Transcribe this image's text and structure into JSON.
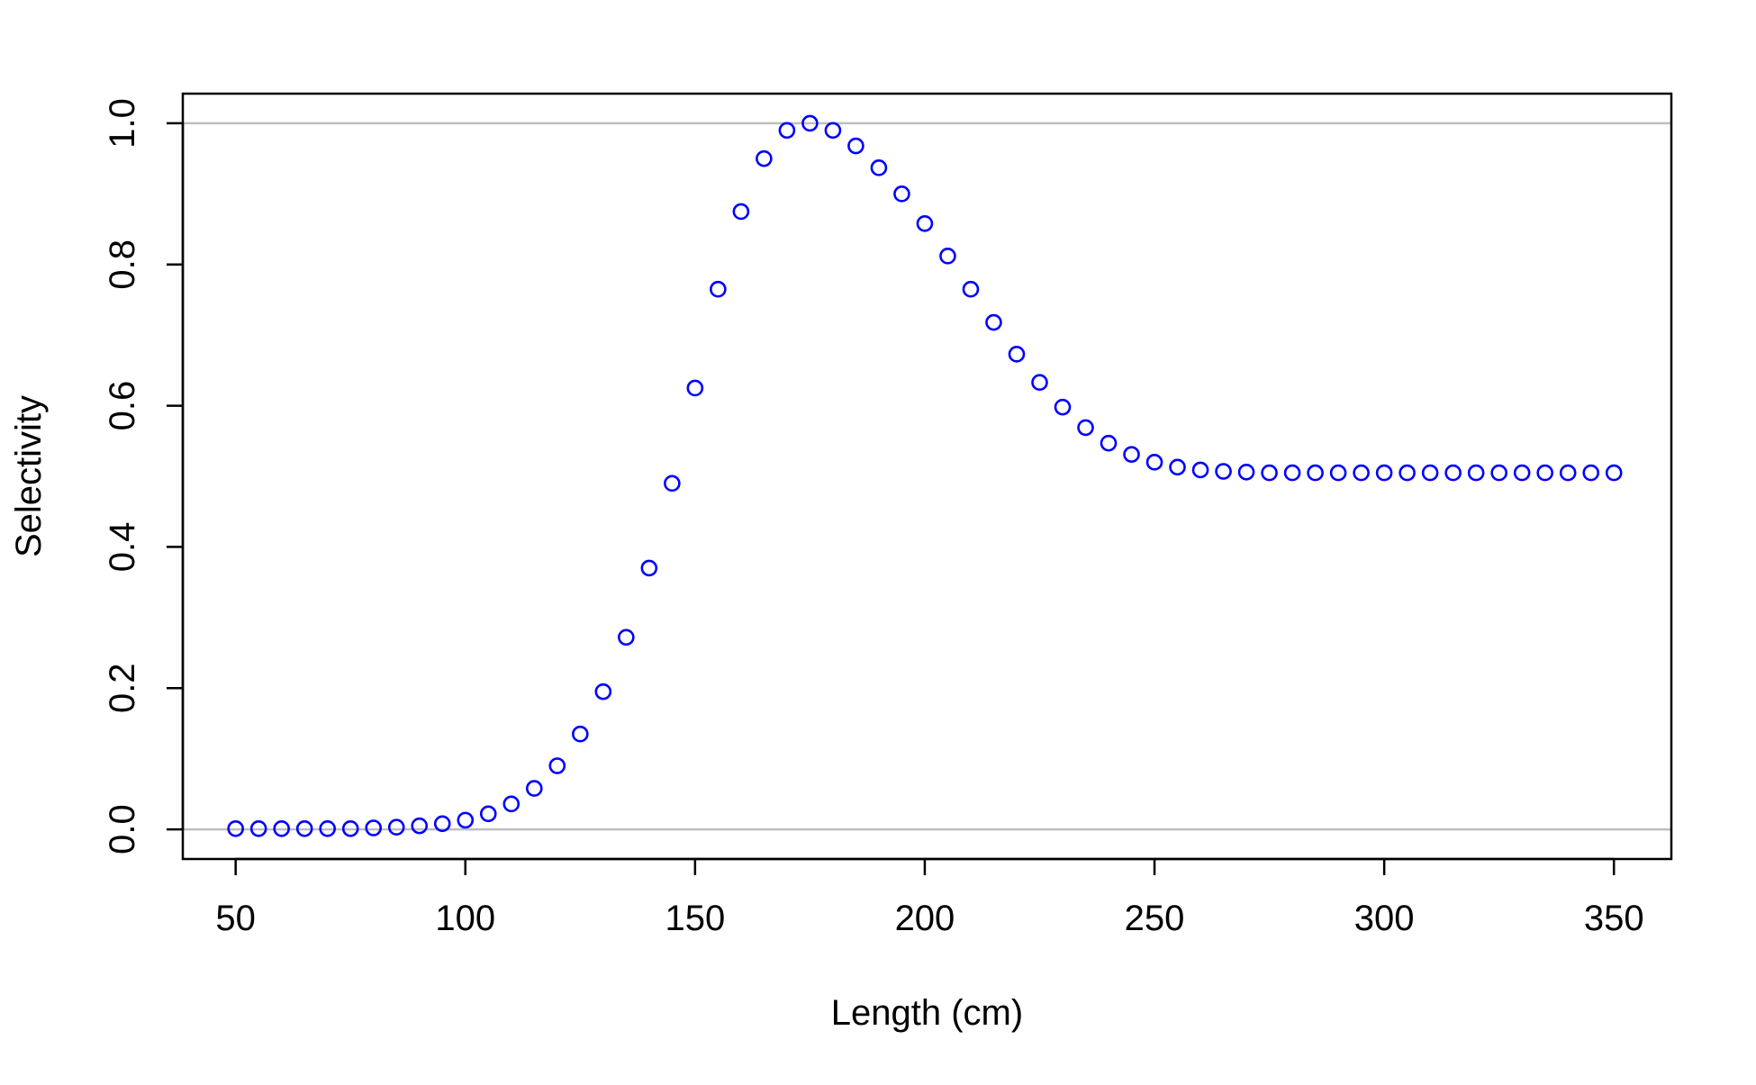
{
  "chart_data": {
    "type": "scatter",
    "title": "",
    "xlabel": "Length (cm)",
    "ylabel": "Selectivity",
    "xlim": [
      38.5,
      362.5
    ],
    "ylim": [
      -0.042,
      1.042
    ],
    "xticks": [
      50,
      100,
      150,
      200,
      250,
      300,
      350
    ],
    "yticks": [
      0.0,
      0.2,
      0.4,
      0.6,
      0.8,
      1.0
    ],
    "xtick_labels": [
      "50",
      "100",
      "150",
      "200",
      "250",
      "300",
      "350"
    ],
    "ytick_labels": [
      "0.0",
      "0.2",
      "0.4",
      "0.6",
      "0.8",
      "1.0"
    ],
    "reference_lines_y": [
      0,
      1
    ],
    "marker": "open-circle",
    "grid": false,
    "legend": "none",
    "colors": {
      "points": "#0000ff",
      "reference_lines": "#bebebe",
      "axes": "#000000"
    },
    "series": [
      {
        "points": [
          [
            50,
            0.001
          ],
          [
            55,
            0.001
          ],
          [
            60,
            0.001
          ],
          [
            65,
            0.001
          ],
          [
            70,
            0.001
          ],
          [
            75,
            0.001
          ],
          [
            80,
            0.002
          ],
          [
            85,
            0.003
          ],
          [
            90,
            0.005
          ],
          [
            95,
            0.008
          ],
          [
            100,
            0.013
          ],
          [
            105,
            0.022
          ],
          [
            110,
            0.036
          ],
          [
            115,
            0.058
          ],
          [
            120,
            0.09
          ],
          [
            125,
            0.135
          ],
          [
            130,
            0.195
          ],
          [
            135,
            0.272
          ],
          [
            140,
            0.37
          ],
          [
            145,
            0.49
          ],
          [
            150,
            0.625
          ],
          [
            155,
            0.765
          ],
          [
            160,
            0.875
          ],
          [
            165,
            0.95
          ],
          [
            170,
            0.99
          ],
          [
            175,
            1.0
          ],
          [
            180,
            0.99
          ],
          [
            185,
            0.968
          ],
          [
            190,
            0.937
          ],
          [
            195,
            0.9
          ],
          [
            200,
            0.858
          ],
          [
            205,
            0.812
          ],
          [
            210,
            0.765
          ],
          [
            215,
            0.718
          ],
          [
            220,
            0.673
          ],
          [
            225,
            0.633
          ],
          [
            230,
            0.598
          ],
          [
            235,
            0.569
          ],
          [
            240,
            0.547
          ],
          [
            245,
            0.531
          ],
          [
            250,
            0.52
          ],
          [
            255,
            0.513
          ],
          [
            260,
            0.509
          ],
          [
            265,
            0.507
          ],
          [
            270,
            0.506
          ],
          [
            275,
            0.505
          ],
          [
            280,
            0.505
          ],
          [
            285,
            0.505
          ],
          [
            290,
            0.505
          ],
          [
            295,
            0.505
          ],
          [
            300,
            0.505
          ],
          [
            305,
            0.505
          ],
          [
            310,
            0.505
          ],
          [
            315,
            0.505
          ],
          [
            320,
            0.505
          ],
          [
            325,
            0.505
          ],
          [
            330,
            0.505
          ],
          [
            335,
            0.505
          ],
          [
            340,
            0.505
          ],
          [
            345,
            0.505
          ],
          [
            350,
            0.505
          ]
        ]
      }
    ]
  }
}
